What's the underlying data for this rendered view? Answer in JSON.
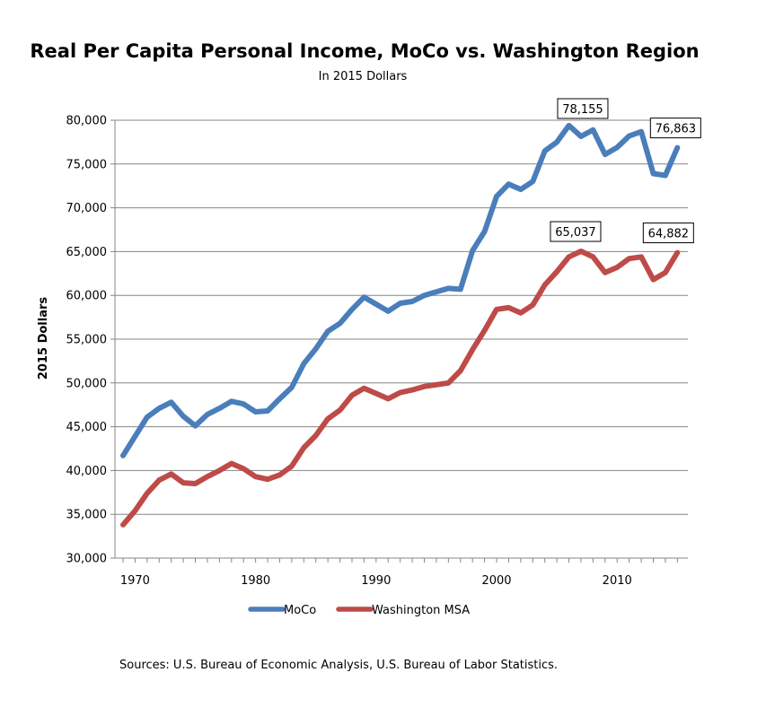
{
  "chart_data": {
    "type": "line",
    "title": "Real Per Capita Personal Income, MoCo vs. Washington Region",
    "subtitle": "In 2015 Dollars",
    "xlabel": "",
    "ylabel": "2015 Dollars",
    "xlim": [
      1969,
      2015
    ],
    "ylim": [
      30000,
      80000
    ],
    "y_ticks": [
      30000,
      35000,
      40000,
      45000,
      50000,
      55000,
      60000,
      65000,
      70000,
      75000,
      80000
    ],
    "y_tick_labels": [
      "30,000",
      "35,000",
      "40,000",
      "45,000",
      "50,000",
      "55,000",
      "60,000",
      "65,000",
      "70,000",
      "75,000",
      "80,000"
    ],
    "x_ticks": [
      1970,
      1980,
      1990,
      2000,
      2010
    ],
    "x_tick_labels": [
      "1970",
      "1980",
      "1990",
      "2000",
      "2010"
    ],
    "grid": "horizontal",
    "legend_position": "bottom",
    "x": [
      1969,
      1970,
      1971,
      1972,
      1973,
      1974,
      1975,
      1976,
      1977,
      1978,
      1979,
      1980,
      1981,
      1982,
      1983,
      1984,
      1985,
      1986,
      1987,
      1988,
      1989,
      1990,
      1991,
      1992,
      1993,
      1994,
      1995,
      1996,
      1997,
      1998,
      1999,
      2000,
      2001,
      2002,
      2003,
      2004,
      2005,
      2006,
      2007,
      2008,
      2009,
      2010,
      2011,
      2012,
      2013,
      2014,
      2015
    ],
    "series": [
      {
        "name": "MoCo",
        "color": "#4a7ebb",
        "values": [
          41700,
          43900,
          46100,
          47100,
          47800,
          46200,
          45100,
          46400,
          47100,
          47900,
          47600,
          46700,
          46800,
          48200,
          49500,
          52200,
          53900,
          55900,
          56800,
          58400,
          59800,
          59000,
          58200,
          59100,
          59300,
          60000,
          60400,
          60800,
          60700,
          65100,
          67300,
          71300,
          72700,
          72100,
          73000,
          76500,
          77500,
          79400,
          78155,
          78900,
          76100,
          76900,
          78200,
          78700,
          73900,
          73700,
          76863
        ]
      },
      {
        "name": "Washington MSA",
        "color": "#be4b48",
        "values": [
          33800,
          35400,
          37400,
          38900,
          39600,
          38600,
          38500,
          39300,
          40000,
          40800,
          40200,
          39300,
          39000,
          39500,
          40500,
          42600,
          44000,
          45900,
          46900,
          48600,
          49400,
          48800,
          48200,
          48900,
          49200,
          49600,
          49800,
          50000,
          51400,
          53800,
          56000,
          58400,
          58600,
          58000,
          58900,
          61200,
          62700,
          64400,
          65037,
          64400,
          62600,
          63200,
          64200,
          64400,
          61800,
          62600,
          64882
        ]
      }
    ],
    "annotations": [
      {
        "series": "MoCo",
        "x": 2007,
        "y": 78155,
        "label": "78,155"
      },
      {
        "series": "MoCo",
        "x": 2015,
        "y": 76863,
        "label": "76,863"
      },
      {
        "series": "Washington MSA",
        "x": 2007,
        "y": 65037,
        "label": "65,037"
      },
      {
        "series": "Washington MSA",
        "x": 2015,
        "y": 64882,
        "label": "64,882"
      }
    ],
    "source_note": "Sources: U.S. Bureau of Economic Analysis, U.S. Bureau of Labor Statistics."
  }
}
